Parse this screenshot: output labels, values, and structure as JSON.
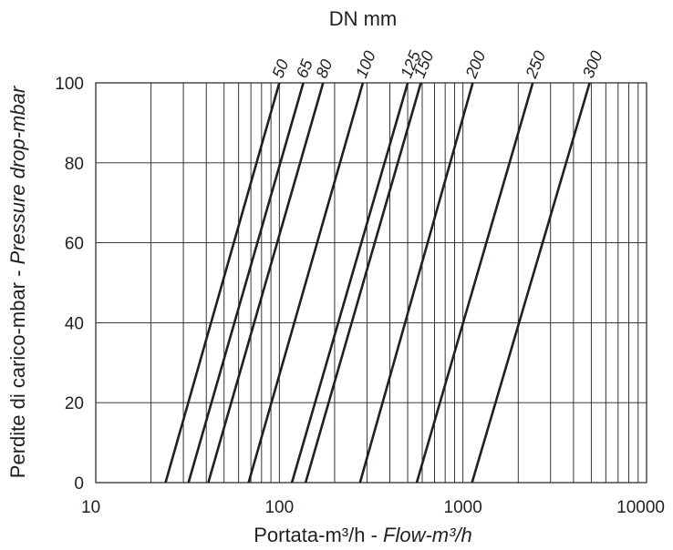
{
  "chart_data": {
    "type": "line",
    "title": "DN mm",
    "xlabel_prefix": "Portata-m³/h - ",
    "xlabel_italic": "Flow-m³/h",
    "ylabel_prefix": "Perdite di carico-mbar - ",
    "ylabel_italic": "Pressure drop-mbar",
    "x_scale": "log",
    "xlim": [
      10,
      10000
    ],
    "ylim": [
      0,
      100
    ],
    "x_ticks": [
      10,
      100,
      1000,
      10000
    ],
    "x_tick_labels": [
      "10",
      "100",
      "1000",
      "10000"
    ],
    "y_ticks": [
      0,
      20,
      40,
      60,
      80,
      100
    ],
    "y_tick_labels": [
      "0",
      "20",
      "40",
      "60",
      "80",
      "100"
    ],
    "grid": true,
    "series": [
      {
        "name": "50",
        "x": [
          24,
          100
        ],
        "y": [
          0,
          100
        ]
      },
      {
        "name": "65",
        "x": [
          32,
          135
        ],
        "y": [
          0,
          100
        ]
      },
      {
        "name": "80",
        "x": [
          41,
          173
        ],
        "y": [
          0,
          100
        ]
      },
      {
        "name": "100",
        "x": [
          68,
          285
        ],
        "y": [
          0,
          100
        ]
      },
      {
        "name": "125",
        "x": [
          117,
          500
        ],
        "y": [
          0,
          100
        ]
      },
      {
        "name": "150",
        "x": [
          139,
          590
        ],
        "y": [
          0,
          100
        ]
      },
      {
        "name": "200",
        "x": [
          275,
          1130
        ],
        "y": [
          0,
          100
        ]
      },
      {
        "name": "250",
        "x": [
          560,
          2400
        ],
        "y": [
          0,
          100
        ]
      },
      {
        "name": "300",
        "x": [
          1120,
          4900
        ],
        "y": [
          0,
          100
        ]
      }
    ]
  }
}
